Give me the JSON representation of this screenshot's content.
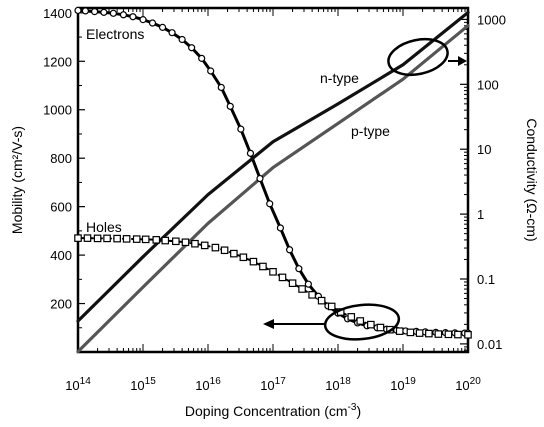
{
  "chart_data": {
    "type": "line",
    "xlabel_main": "Doping Concentration (cm",
    "xlabel_sup": "-3",
    "xlabel_end": ")",
    "ylabel_left": "Mobility (cm²/V-s)",
    "ylabel_right": "Conductivity (Ω-cm)",
    "x_scale": "log",
    "y_left_scale": "linear",
    "y_right_scale": "log",
    "xlim": [
      100000000000000.0,
      1e+20
    ],
    "ylim_left": [
      0,
      1420
    ],
    "ylim_right": [
      0.0075,
      1500
    ],
    "x_ticks": [
      {
        "base": "10",
        "exp": "14",
        "value": 100000000000000.0
      },
      {
        "base": "10",
        "exp": "15",
        "value": 1000000000000000.0
      },
      {
        "base": "10",
        "exp": "16",
        "value": 1e+16
      },
      {
        "base": "10",
        "exp": "17",
        "value": 1e+17
      },
      {
        "base": "10",
        "exp": "18",
        "value": 1e+18
      },
      {
        "base": "10",
        "exp": "19",
        "value": 1e+19
      },
      {
        "base": "10",
        "exp": "20",
        "value": 1e+20
      }
    ],
    "y_left_ticks": [
      "200",
      "400",
      "600",
      "800",
      "1000",
      "1200",
      "1400"
    ],
    "y_right_ticks": [
      "0.01",
      "0.1",
      "1",
      "10",
      "100",
      "1000"
    ],
    "annotations": {
      "electrons": "Electrons",
      "holes": "Holes",
      "n_type": "n-type",
      "p_type": "p-type"
    },
    "series": [
      {
        "name": "Electrons",
        "axis": "left",
        "marker": "circle",
        "x": [
          100000000000000.0,
          130000000000000.0,
          180000000000000.0,
          250000000000000.0,
          350000000000000.0,
          500000000000000.0,
          700000000000000.0,
          1000000000000000.0,
          1400000000000000.0,
          2000000000000000.0,
          2800000000000000.0,
          4000000000000000.0,
          5600000000000000.0,
          8000000000000000.0,
          1.1e+16,
          1.6e+16,
          2.2e+16,
          3.2e+16,
          4.5e+16,
          6.3e+16,
          8.9e+16,
          1.3e+17,
          1.8e+17,
          2.5e+17,
          3.5e+17,
          5e+17,
          7e+17,
          1e+18,
          1.4e+18,
          2e+18,
          2.8e+18,
          4e+18,
          5.6e+18,
          8e+18,
          1.1e+19,
          1.6e+19,
          2.2e+19,
          3.2e+19,
          4.5e+19,
          6.3e+19,
          8.9e+19,
          1e+20
        ],
        "y": [
          1410,
          1408,
          1405,
          1402,
          1398,
          1392,
          1384,
          1372,
          1358,
          1340,
          1318,
          1290,
          1256,
          1212,
          1160,
          1092,
          1014,
          920,
          820,
          716,
          612,
          512,
          422,
          344,
          280,
          230,
          190,
          160,
          137,
          120,
          108,
          100,
          94,
          90,
          87,
          85,
          83,
          81,
          80,
          79,
          78,
          78
        ]
      },
      {
        "name": "Holes",
        "axis": "left",
        "marker": "square",
        "x": [
          100000000000000.0,
          140000000000000.0,
          200000000000000.0,
          280000000000000.0,
          400000000000000.0,
          560000000000000.0,
          800000000000000.0,
          1100000000000000.0,
          1600000000000000.0,
          2200000000000000.0,
          3200000000000000.0,
          4500000000000000.0,
          6300000000000000.0,
          8900000000000000.0,
          1.3e+16,
          1.8e+16,
          2.5e+16,
          3.5e+16,
          5e+16,
          7e+16,
          1e+17,
          1.4e+17,
          2e+17,
          2.8e+17,
          4e+17,
          5.6e+17,
          8e+17,
          1.1e+18,
          1.6e+18,
          2.2e+18,
          3.2e+18,
          4.5e+18,
          6.3e+18,
          8.9e+18,
          1.3e+19,
          1.8e+19,
          2.5e+19,
          3.5e+19,
          5e+19,
          7e+19,
          1e+20
        ],
        "y": [
          470,
          470,
          469,
          469,
          468,
          467,
          466,
          465,
          463,
          460,
          457,
          453,
          447,
          440,
          431,
          420,
          406,
          391,
          373,
          353,
          331,
          308,
          284,
          260,
          236,
          212,
          188,
          165,
          145,
          128,
          113,
          101,
          92,
          86,
          81,
          78,
          76,
          74,
          73,
          72,
          71
        ]
      },
      {
        "name": "n-type",
        "axis": "right",
        "marker": "none",
        "x": [
          100000000000000.0,
          1000000000000000.0,
          1e+16,
          1e+17,
          1e+18,
          1e+19,
          1e+20
        ],
        "y": [
          0.0225,
          0.22,
          2.0,
          13,
          50,
          200,
          1280
        ]
      },
      {
        "name": "p-type",
        "axis": "right",
        "marker": "none",
        "x": [
          100000000000000.0,
          1000000000000000.0,
          1e+16,
          1e+17,
          1e+18,
          1e+19,
          1e+20
        ],
        "y": [
          0.0076,
          0.075,
          0.72,
          5.2,
          25,
          120,
          800
        ]
      }
    ]
  }
}
